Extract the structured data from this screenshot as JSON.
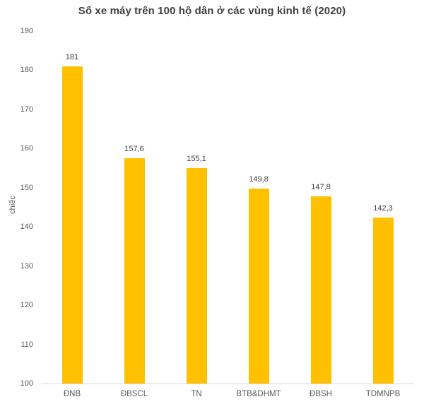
{
  "chart_data": {
    "type": "bar",
    "title": "Số xe máy trên 100 hộ dân ở các vùng kinh tế (2020)",
    "categories": [
      "ĐNB",
      "ĐBSCL",
      "TN",
      "BTB&DHMT",
      "ĐBSH",
      "TDMNPB"
    ],
    "values": [
      181,
      157.6,
      155.1,
      149.8,
      147.8,
      142.3
    ],
    "value_labels": [
      "181",
      "157,6",
      "155,1",
      "149,8",
      "147,8",
      "142,3"
    ],
    "xlabel": "",
    "ylabel": "chiếc",
    "ylim": [
      100,
      190
    ],
    "yticks": [
      100,
      110,
      120,
      130,
      140,
      150,
      160,
      170,
      180,
      190
    ],
    "grid": false,
    "legend": false,
    "colors": {
      "bar": "#FFC000",
      "title_text": "#404040",
      "value_label_text": "#404040",
      "tick_text": "#595959",
      "axis_line": "#D9D9D9",
      "background": "#FFFFFF"
    }
  }
}
